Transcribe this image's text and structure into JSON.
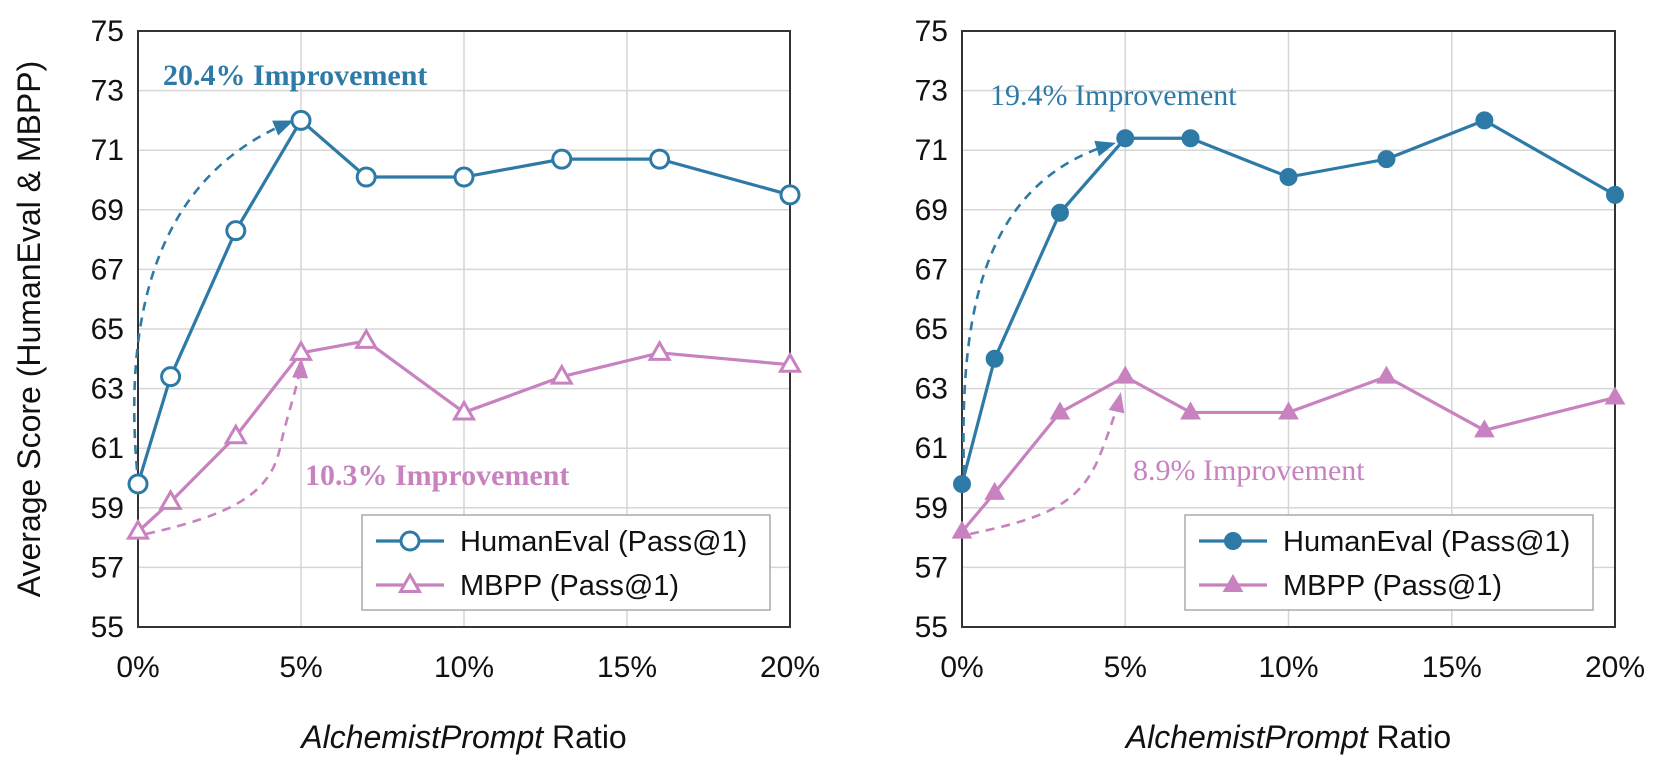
{
  "chart_data": [
    {
      "type": "line",
      "x_ticks": [
        "0%",
        "5%",
        "10%",
        "15%",
        "20%"
      ],
      "x_tick_values": [
        0,
        5,
        10,
        15,
        20
      ],
      "xlim": [
        0,
        20
      ],
      "ylim": [
        55,
        75
      ],
      "y_ticks": [
        55,
        57,
        59,
        61,
        63,
        65,
        67,
        69,
        71,
        73,
        75
      ],
      "xlabel_italic": "AlchemistPrompt",
      "xlabel_rest": " Ratio",
      "ylabel": "Average Score (HumanEval & MBPP)",
      "grid": true,
      "legend_position": "bottom-right",
      "series": [
        {
          "name": "HumanEval (Pass@1)",
          "color": "#2e7aa6",
          "marker": "hollow-circle",
          "x": [
            0,
            1,
            3,
            5,
            7,
            10,
            13,
            16,
            20
          ],
          "y": [
            59.8,
            63.4,
            68.3,
            72.0,
            70.1,
            70.1,
            70.7,
            70.7,
            69.5
          ]
        },
        {
          "name": "MBPP (Pass@1)",
          "color": "#c882c0",
          "marker": "hollow-triangle",
          "x": [
            0,
            1,
            3,
            5,
            7,
            10,
            13,
            16,
            20
          ],
          "y": [
            58.2,
            59.2,
            61.4,
            64.2,
            64.6,
            62.2,
            63.4,
            64.2,
            63.8
          ]
        }
      ],
      "annotations": [
        {
          "text": "20.4% Improvement",
          "color": "#2e7aa6",
          "bold": true
        },
        {
          "text": "10.3% Improvement",
          "color": "#c882c0",
          "bold": true
        }
      ]
    },
    {
      "type": "line",
      "x_ticks": [
        "0%",
        "5%",
        "10%",
        "15%",
        "20%"
      ],
      "x_tick_values": [
        0,
        5,
        10,
        15,
        20
      ],
      "xlim": [
        0,
        20
      ],
      "ylim": [
        55,
        75
      ],
      "y_ticks": [
        55,
        57,
        59,
        61,
        63,
        65,
        67,
        69,
        71,
        73,
        75
      ],
      "xlabel_italic": "AlchemistPrompt",
      "xlabel_rest": " Ratio",
      "ylabel": "",
      "grid": true,
      "legend_position": "bottom-right",
      "series": [
        {
          "name": "HumanEval (Pass@1)",
          "color": "#2e7aa6",
          "marker": "filled-circle",
          "x": [
            0,
            1,
            3,
            5,
            7,
            10,
            13,
            16,
            20
          ],
          "y": [
            59.8,
            64.0,
            68.9,
            71.4,
            71.4,
            70.1,
            70.7,
            72.0,
            69.5
          ]
        },
        {
          "name": "MBPP (Pass@1)",
          "color": "#c882c0",
          "marker": "filled-triangle",
          "x": [
            0,
            1,
            3,
            5,
            7,
            10,
            13,
            16,
            20
          ],
          "y": [
            58.2,
            59.5,
            62.2,
            63.4,
            62.2,
            62.2,
            63.4,
            61.6,
            62.7
          ]
        }
      ],
      "annotations": [
        {
          "text": "19.4% Improvement",
          "color": "#2e7aa6",
          "bold": false
        },
        {
          "text": "8.9% Improvement",
          "color": "#c882c0",
          "bold": false
        }
      ]
    }
  ]
}
